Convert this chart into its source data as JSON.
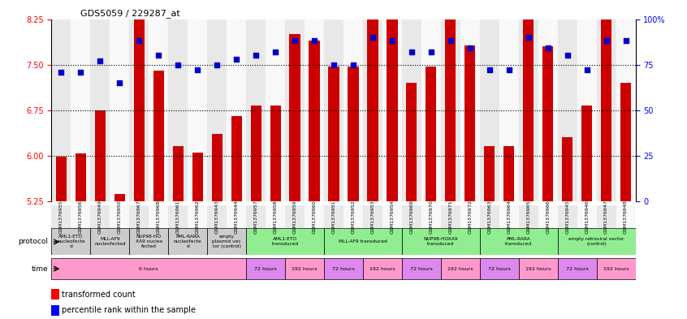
{
  "title": "GDS5059 / 229287_at",
  "samples": [
    "GSM1376955",
    "GSM1376956",
    "GSM1376949",
    "GSM1376950",
    "GSM1376967",
    "GSM1376968",
    "GSM1376961",
    "GSM1376962",
    "GSM1376943",
    "GSM1376944",
    "GSM1376957",
    "GSM1376958",
    "GSM1376959",
    "GSM1376960",
    "GSM1376951",
    "GSM1376952",
    "GSM1376953",
    "GSM1376954",
    "GSM1376969",
    "GSM1376970",
    "GSM1376971",
    "GSM1376972",
    "GSM1376963",
    "GSM1376964",
    "GSM1376965",
    "GSM1376966",
    "GSM1376945",
    "GSM1376946",
    "GSM1376947",
    "GSM1376948"
  ],
  "bar_values": [
    5.98,
    6.04,
    6.75,
    5.37,
    8.35,
    7.4,
    6.15,
    6.05,
    6.35,
    6.65,
    6.82,
    6.82,
    8.0,
    7.9,
    7.47,
    7.47,
    8.3,
    8.3,
    7.2,
    7.47,
    8.3,
    7.82,
    6.15,
    6.15,
    8.3,
    7.8,
    6.3,
    6.83,
    8.3,
    7.2
  ],
  "percentile_values": [
    71,
    71,
    77,
    65,
    88,
    80,
    75,
    72,
    75,
    78,
    80,
    82,
    88,
    88,
    75,
    75,
    90,
    88,
    82,
    82,
    88,
    84,
    72,
    72,
    90,
    84,
    80,
    72,
    88,
    88
  ],
  "ylim_left": [
    5.25,
    8.25
  ],
  "ylim_right": [
    0,
    100
  ],
  "yticks_left": [
    5.25,
    6.0,
    6.75,
    7.5,
    8.25
  ],
  "yticks_right": [
    0,
    25,
    50,
    75,
    100
  ],
  "dotted_lines": [
    6.0,
    6.75,
    7.5
  ],
  "bar_color": "#cc0000",
  "dot_color": "#0000cc",
  "protocol_groups": [
    {
      "label": "AML1-ETO\nnucleofecte\nd",
      "start": 0,
      "end": 1,
      "color": "#cccccc"
    },
    {
      "label": "MLL-AF9\nnucleofected",
      "start": 2,
      "end": 3,
      "color": "#cccccc"
    },
    {
      "label": "NUP98-HO\nXA9 nucleo\nfected",
      "start": 4,
      "end": 5,
      "color": "#cccccc"
    },
    {
      "label": "PML-RARA\nnucleofecte\nd",
      "start": 6,
      "end": 7,
      "color": "#cccccc"
    },
    {
      "label": "empty\nplasmid vec\ntor (control)",
      "start": 8,
      "end": 9,
      "color": "#cccccc"
    },
    {
      "label": "AML1-ETO\ntransduced",
      "start": 10,
      "end": 13,
      "color": "#90ee90"
    },
    {
      "label": "MLL-AF9 transduced",
      "start": 14,
      "end": 17,
      "color": "#90ee90"
    },
    {
      "label": "NUP98-HOXA9\ntransduced",
      "start": 18,
      "end": 21,
      "color": "#90ee90"
    },
    {
      "label": "PML-RARA\ntransduced",
      "start": 22,
      "end": 25,
      "color": "#90ee90"
    },
    {
      "label": "empty retroviral vector\n(control)",
      "start": 26,
      "end": 29,
      "color": "#90ee90"
    }
  ],
  "time_groups": [
    {
      "label": "6 hours",
      "start": 0,
      "end": 9,
      "color": "#ff99cc"
    },
    {
      "label": "72 hours",
      "start": 10,
      "end": 11,
      "color": "#dd88ee"
    },
    {
      "label": "192 hours",
      "start": 12,
      "end": 13,
      "color": "#ff99cc"
    },
    {
      "label": "72 hours",
      "start": 14,
      "end": 15,
      "color": "#dd88ee"
    },
    {
      "label": "192 hours",
      "start": 16,
      "end": 17,
      "color": "#ff99cc"
    },
    {
      "label": "72 hours",
      "start": 18,
      "end": 19,
      "color": "#dd88ee"
    },
    {
      "label": "192 hours",
      "start": 20,
      "end": 21,
      "color": "#ff99cc"
    },
    {
      "label": "72 hours",
      "start": 22,
      "end": 23,
      "color": "#dd88ee"
    },
    {
      "label": "192 hours",
      "start": 24,
      "end": 25,
      "color": "#ff99cc"
    },
    {
      "label": "72 hours",
      "start": 26,
      "end": 27,
      "color": "#dd88ee"
    },
    {
      "label": "192 hours",
      "start": 28,
      "end": 29,
      "color": "#ff99cc"
    }
  ]
}
